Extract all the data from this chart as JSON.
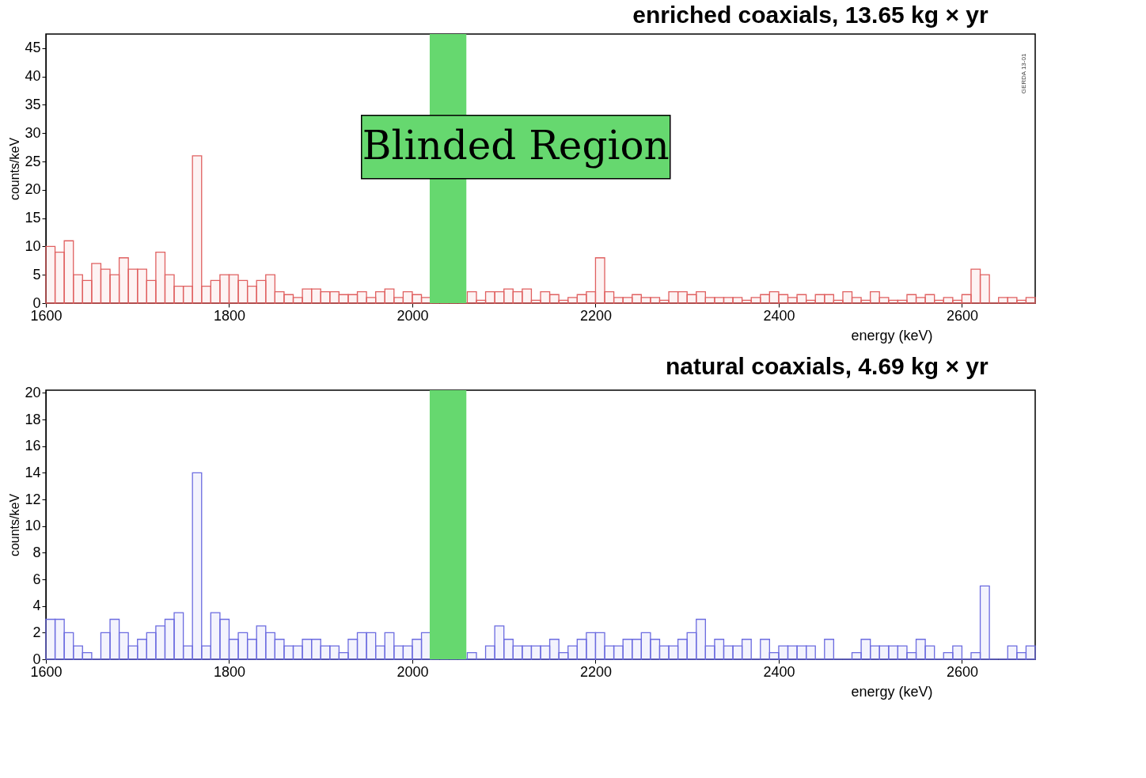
{
  "chart_data": [
    {
      "type": "histogram",
      "title": "enriched coaxials,  13.65 kg × yr",
      "xlabel": "energy (keV)",
      "ylabel": "counts/keV",
      "bins": [
        1600,
        1610,
        1620,
        1630,
        1640,
        1650,
        1660,
        1670,
        1680,
        1690,
        1700,
        1710,
        1720,
        1730,
        1740,
        1750,
        1760,
        1770,
        1780,
        1790,
        1800,
        1810,
        1820,
        1830,
        1840,
        1850,
        1860,
        1870,
        1880,
        1890,
        1900,
        1910,
        1920,
        1930,
        1940,
        1950,
        1960,
        1970,
        1980,
        1990,
        2000,
        2010,
        2020,
        2030,
        2040,
        2050,
        2060,
        2070,
        2080,
        2090,
        2100,
        2110,
        2120,
        2130,
        2140,
        2150,
        2160,
        2170,
        2180,
        2190,
        2200,
        2210,
        2220,
        2230,
        2240,
        2250,
        2260,
        2270,
        2280,
        2290,
        2300,
        2310,
        2320,
        2330,
        2340,
        2350,
        2360,
        2370,
        2380,
        2390,
        2400,
        2410,
        2420,
        2430,
        2440,
        2450,
        2460,
        2470,
        2480,
        2490,
        2500,
        2510,
        2520,
        2530,
        2540,
        2550,
        2560,
        2570,
        2580,
        2590,
        2600,
        2610,
        2620,
        2630,
        2640,
        2650,
        2660,
        2670,
        2680
      ],
      "series": [
        {
          "color": "#e06060",
          "values": [
            10,
            9,
            11,
            5,
            4,
            7,
            6,
            5,
            8,
            6,
            6,
            4,
            9,
            5,
            3,
            3,
            26,
            3,
            4,
            5,
            5,
            4,
            3,
            4,
            5,
            2,
            1.5,
            1,
            2.5,
            2.5,
            2,
            2,
            1.5,
            1.5,
            2,
            1,
            2,
            2.5,
            1,
            2,
            1.5,
            1,
            0,
            0,
            0,
            0,
            2,
            0.5,
            2,
            2,
            2.5,
            2,
            2.5,
            0.5,
            2,
            1.5,
            0.5,
            1,
            1.5,
            2,
            8,
            2,
            1,
            1,
            1.5,
            1,
            1,
            0.5,
            2,
            2,
            1.5,
            2,
            1,
            1,
            1,
            1,
            0.5,
            1,
            1.5,
            2,
            1.5,
            1,
            1.5,
            0.5,
            1.5,
            1.5,
            0.5,
            2,
            1,
            0.5,
            2,
            1,
            0.5,
            0.5,
            1.5,
            1,
            1.5,
            0.5,
            1,
            0.5,
            1.5,
            6,
            5,
            0,
            1,
            1,
            0.5,
            1
          ]
        }
      ],
      "xlim": [
        1600,
        2680
      ],
      "xticks": [
        1600,
        1800,
        2000,
        2200,
        2400,
        2600
      ],
      "ylim": [
        0,
        47.5
      ],
      "yticks": [
        0,
        5,
        10,
        15,
        20,
        25,
        30,
        35,
        40,
        45
      ],
      "bands": [
        {
          "axis": "x",
          "from": 2019,
          "to": 2059,
          "label": "Blinded Region",
          "color": "#66d86f"
        }
      ],
      "annotations": [
        "GERDA 13-01"
      ]
    },
    {
      "type": "histogram",
      "title": "natural coaxials,    4.69 kg × yr",
      "xlabel": "energy (keV)",
      "ylabel": "counts/keV",
      "bins": [
        1600,
        1610,
        1620,
        1630,
        1640,
        1650,
        1660,
        1670,
        1680,
        1690,
        1700,
        1710,
        1720,
        1730,
        1740,
        1750,
        1760,
        1770,
        1780,
        1790,
        1800,
        1810,
        1820,
        1830,
        1840,
        1850,
        1860,
        1870,
        1880,
        1890,
        1900,
        1910,
        1920,
        1930,
        1940,
        1950,
        1960,
        1970,
        1980,
        1990,
        2000,
        2010,
        2020,
        2030,
        2040,
        2050,
        2060,
        2070,
        2080,
        2090,
        2100,
        2110,
        2120,
        2130,
        2140,
        2150,
        2160,
        2170,
        2180,
        2190,
        2200,
        2210,
        2220,
        2230,
        2240,
        2250,
        2260,
        2270,
        2280,
        2290,
        2300,
        2310,
        2320,
        2330,
        2340,
        2350,
        2360,
        2370,
        2380,
        2390,
        2400,
        2410,
        2420,
        2430,
        2440,
        2450,
        2460,
        2470,
        2480,
        2490,
        2500,
        2510,
        2520,
        2530,
        2540,
        2550,
        2560,
        2570,
        2580,
        2590,
        2600,
        2610,
        2620,
        2630,
        2640,
        2650,
        2660,
        2670,
        2680
      ],
      "series": [
        {
          "color": "#6b6be0",
          "values": [
            3,
            3,
            2,
            1,
            0.5,
            0,
            2,
            3,
            2,
            1,
            1.5,
            2,
            2.5,
            3,
            3.5,
            1,
            14,
            1,
            3.5,
            3,
            1.5,
            2,
            1.5,
            2.5,
            2,
            1.5,
            1,
            1,
            1.5,
            1.5,
            1,
            1,
            0.5,
            1.5,
            2,
            2,
            1,
            2,
            1,
            1,
            1.5,
            2,
            0,
            0,
            0,
            0,
            0.5,
            0,
            1,
            2.5,
            1.5,
            1,
            1,
            1,
            1,
            1.5,
            0.5,
            1,
            1.5,
            2,
            2,
            1,
            1,
            1.5,
            1.5,
            2,
            1.5,
            1,
            1,
            1.5,
            2,
            3,
            1,
            1.5,
            1,
            1,
            1.5,
            0,
            1.5,
            0.5,
            1,
            1,
            1,
            1,
            0,
            1.5,
            0,
            0,
            0.5,
            1.5,
            1,
            1,
            1,
            1,
            0.5,
            1.5,
            1,
            0,
            0.5,
            1,
            0,
            0.5,
            5.5,
            0,
            0,
            1,
            0.5,
            1
          ]
        }
      ],
      "xlim": [
        1600,
        2680
      ],
      "xticks": [
        1600,
        1800,
        2000,
        2200,
        2400,
        2600
      ],
      "ylim": [
        0,
        20.2
      ],
      "yticks": [
        0,
        2,
        4,
        6,
        8,
        10,
        12,
        14,
        16,
        18,
        20
      ],
      "bands": [
        {
          "axis": "x",
          "from": 2019,
          "to": 2059,
          "color": "#66d86f"
        }
      ]
    }
  ]
}
